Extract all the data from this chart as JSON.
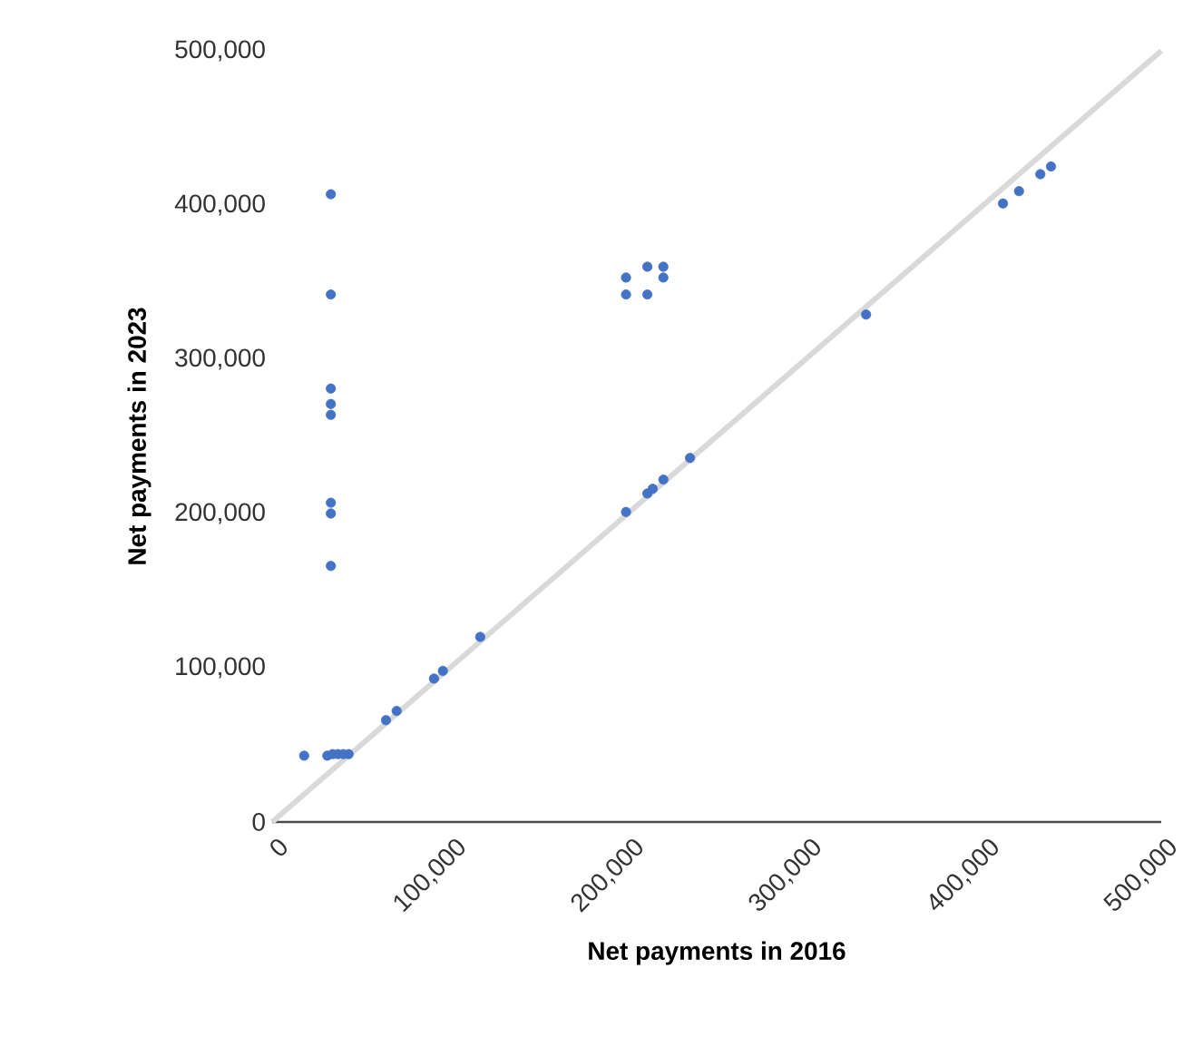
{
  "chart_data": {
    "type": "scatter",
    "xlabel": "Net payments in 2016",
    "ylabel": "Net payments in 2023",
    "grid": false,
    "xlim": [
      0,
      500000
    ],
    "ylim": [
      0,
      500000
    ],
    "xticks": [
      {
        "value": 0,
        "label": "0"
      },
      {
        "value": 100000,
        "label": "100,000"
      },
      {
        "value": 200000,
        "label": "200,000"
      },
      {
        "value": 300000,
        "label": "300,000"
      },
      {
        "value": 400000,
        "label": "400,000"
      },
      {
        "value": 500000,
        "label": "500,000"
      }
    ],
    "yticks": [
      {
        "value": 0,
        "label": "0"
      },
      {
        "value": 100000,
        "label": "100,000"
      },
      {
        "value": 200000,
        "label": "200,000"
      },
      {
        "value": 300000,
        "label": "300,000"
      },
      {
        "value": 400000,
        "label": "400,000"
      },
      {
        "value": 500000,
        "label": "500,000"
      }
    ],
    "series": [
      {
        "type": "line",
        "color": "#d9d9d9",
        "x": [
          0,
          500000
        ],
        "values": [
          0,
          500000
        ]
      },
      {
        "color": "#4472c4",
        "x": [
          33000,
          33000,
          33000,
          33000,
          33000,
          33000,
          33000,
          33000,
          18000,
          31000,
          34000,
          37000,
          40000,
          43000,
          64000,
          70000,
          91000,
          96000,
          117000,
          199000,
          199000,
          211000,
          220000,
          220000,
          211000,
          199000,
          211000,
          214000,
          220000,
          235000,
          334000,
          411000,
          420000,
          432000,
          438000
        ],
        "values": [
          407000,
          342000,
          281000,
          271000,
          264000,
          207000,
          200000,
          166000,
          43000,
          43000,
          44000,
          44000,
          44000,
          44000,
          66000,
          72000,
          93000,
          98000,
          120000,
          353000,
          342000,
          360000,
          360000,
          353000,
          342000,
          201000,
          213000,
          216000,
          222000,
          236000,
          329000,
          401000,
          409000,
          420000,
          425000
        ]
      }
    ]
  }
}
